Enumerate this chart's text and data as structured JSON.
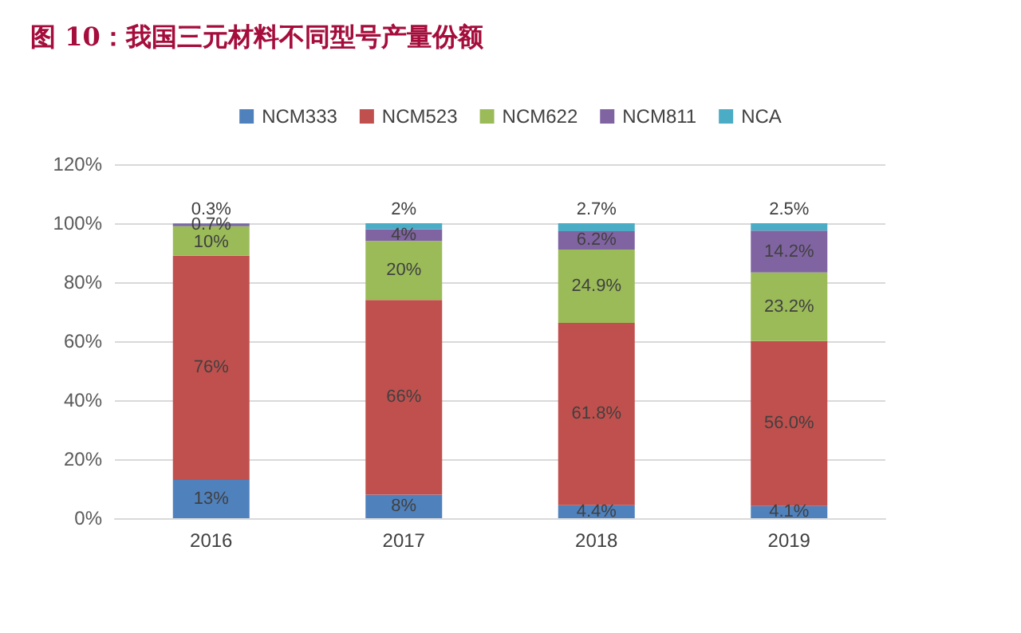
{
  "chart_data": {
    "type": "bar",
    "title": "图 10：我国三元材料不同型号产量份额",
    "categories": [
      "2016",
      "2017",
      "2018",
      "2019"
    ],
    "stacked": true,
    "series": [
      {
        "name": "NCM333",
        "color": "#4f81bd",
        "values": [
          13,
          8,
          4.4,
          4.1
        ],
        "value_labels": [
          "13%",
          "8%",
          "4.4%",
          "4.1%"
        ]
      },
      {
        "name": "NCM523",
        "color": "#c0504d",
        "values": [
          76,
          66,
          61.8,
          56.0
        ],
        "value_labels": [
          "76%",
          "66%",
          "61.8%",
          "56.0%"
        ]
      },
      {
        "name": "NCM622",
        "color": "#9bbb59",
        "values": [
          10,
          20,
          24.9,
          23.2
        ],
        "value_labels": [
          "10%",
          "20%",
          "24.9%",
          "23.2%"
        ]
      },
      {
        "name": "NCM811",
        "color": "#8064a2",
        "values": [
          0.7,
          4,
          6.2,
          14.2
        ],
        "value_labels": [
          "0.7%",
          "4%",
          "6.2%",
          "14.2%"
        ]
      },
      {
        "name": "NCA",
        "color": "#4bacc6",
        "values": [
          0.3,
          2,
          2.7,
          2.5
        ],
        "value_labels": [
          "0.3%",
          "2%",
          "2.7%",
          "2.5%"
        ]
      }
    ],
    "ylim": [
      0,
      120
    ],
    "yticks": [
      {
        "value": 0,
        "label": "0%"
      },
      {
        "value": 20,
        "label": "20%"
      },
      {
        "value": 40,
        "label": "40%"
      },
      {
        "value": 60,
        "label": "60%"
      },
      {
        "value": 80,
        "label": "80%"
      },
      {
        "value": 100,
        "label": "100%"
      },
      {
        "value": 120,
        "label": "120%"
      }
    ],
    "grid": "y",
    "legend": "top"
  }
}
